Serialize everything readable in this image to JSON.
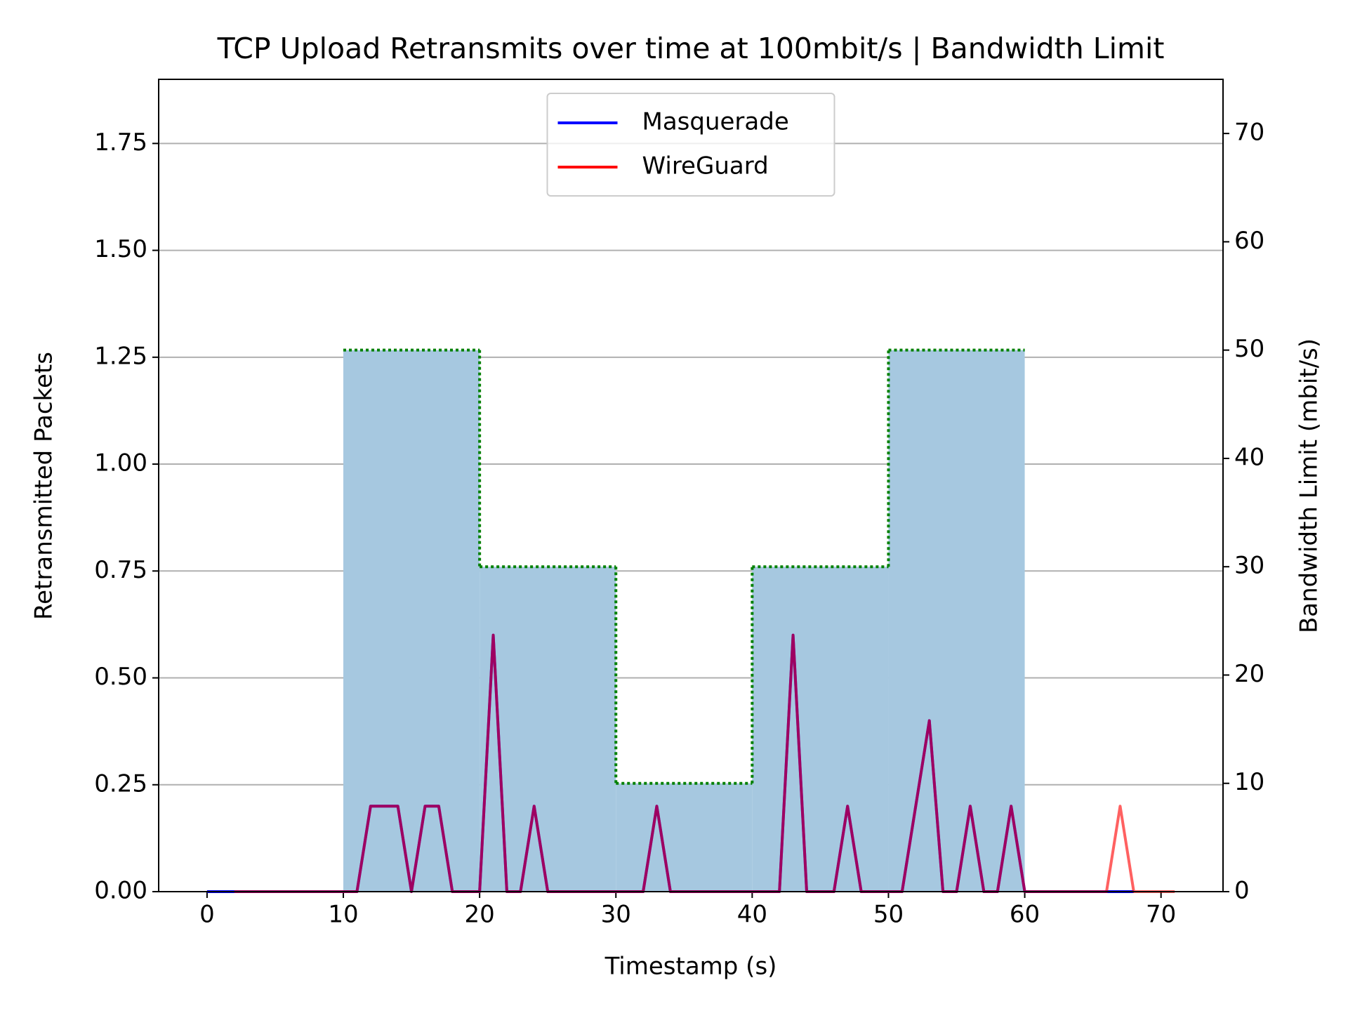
{
  "chart_data": {
    "type": "line",
    "title": "TCP Upload Retransmits over time at 100mbit/s | Bandwidth Limit",
    "xlabel": "Timestamp (s)",
    "ylabel": "Retransmitted Packets",
    "y2label": "Bandwidth Limit (mbit/s)",
    "xlim": [
      -3.55,
      74.55
    ],
    "ylim": [
      0,
      1.9
    ],
    "y2lim": [
      0,
      75
    ],
    "xticks": [
      0,
      10,
      20,
      30,
      40,
      50,
      60,
      70
    ],
    "yticks": [
      {
        "value": 0,
        "label": "0.00"
      },
      {
        "value": 0.25,
        "label": "0.25"
      },
      {
        "value": 0.5,
        "label": "0.50"
      },
      {
        "value": 0.75,
        "label": "0.75"
      },
      {
        "value": 1,
        "label": "1.00"
      },
      {
        "value": 1.25,
        "label": "1.25"
      },
      {
        "value": 1.5,
        "label": "1.50"
      },
      {
        "value": 1.75,
        "label": "1.75"
      }
    ],
    "y2ticks": [
      0,
      10,
      20,
      30,
      40,
      50,
      60,
      70
    ],
    "grid": true,
    "legend": "upper center",
    "y2color": "#008000",
    "series": [
      {
        "name": "Masquerade",
        "color": "#0000ff",
        "x": [
          0,
          1,
          2,
          3,
          4,
          5,
          6,
          7,
          8,
          9,
          10,
          11,
          12,
          13,
          14,
          15,
          16,
          17,
          18,
          19,
          20,
          21,
          22,
          23,
          24,
          25,
          26,
          27,
          28,
          29,
          30,
          31,
          32,
          33,
          34,
          35,
          36,
          37,
          38,
          39,
          40,
          41,
          42,
          43,
          44,
          45,
          46,
          47,
          48,
          49,
          50,
          51,
          52,
          53,
          54,
          55,
          56,
          57,
          58,
          59,
          60,
          61,
          62,
          63,
          64,
          65,
          66,
          67,
          68
        ],
        "values": [
          0,
          0,
          0,
          0,
          0,
          0,
          0,
          0,
          0,
          0,
          0,
          0,
          0.2,
          0.2,
          0.2,
          0,
          0.2,
          0.2,
          0,
          0,
          0,
          0.6,
          0,
          0,
          0.2,
          0,
          0,
          0,
          0,
          0,
          0,
          0,
          0,
          0.2,
          0,
          0,
          0,
          0,
          0,
          0,
          0,
          0,
          0,
          0.6,
          0,
          0,
          0,
          0.2,
          0,
          0,
          0,
          0,
          0.2,
          0.4,
          0,
          0,
          0.2,
          0,
          0,
          0.2,
          0,
          0,
          0,
          0,
          0,
          0,
          0,
          0,
          0
        ]
      },
      {
        "name": "WireGuard",
        "color": "#ff0000",
        "x": [
          2,
          3,
          4,
          5,
          6,
          7,
          8,
          9,
          10,
          11,
          12,
          13,
          14,
          15,
          16,
          17,
          18,
          19,
          20,
          21,
          22,
          23,
          24,
          25,
          26,
          27,
          28,
          29,
          30,
          31,
          32,
          33,
          34,
          35,
          36,
          37,
          38,
          39,
          40,
          41,
          42,
          43,
          44,
          45,
          46,
          47,
          48,
          49,
          50,
          51,
          52,
          53,
          54,
          55,
          56,
          57,
          58,
          59,
          60,
          61,
          62,
          63,
          64,
          65,
          66,
          67,
          68,
          69,
          70,
          71
        ],
        "values": [
          0,
          0,
          0,
          0,
          0,
          0,
          0,
          0,
          0,
          0,
          0.2,
          0.2,
          0.2,
          0,
          0.2,
          0.2,
          0,
          0,
          0,
          0.6,
          0,
          0,
          0.2,
          0,
          0,
          0,
          0,
          0,
          0,
          0,
          0,
          0.2,
          0,
          0,
          0,
          0,
          0,
          0,
          0,
          0,
          0,
          0.6,
          0,
          0,
          0,
          0.2,
          0,
          0,
          0,
          0,
          0.2,
          0.4,
          0,
          0,
          0.2,
          0,
          0,
          0.2,
          0,
          0,
          0,
          0,
          0,
          0,
          0,
          0.2,
          0,
          0,
          0,
          0
        ]
      }
    ],
    "bandwidth": {
      "axis": "y2",
      "edges": [
        10,
        20,
        30,
        40,
        50,
        60
      ],
      "values": [
        50,
        30,
        10,
        30,
        50
      ],
      "fill": "#a6c8e0",
      "color": "#008000"
    }
  }
}
